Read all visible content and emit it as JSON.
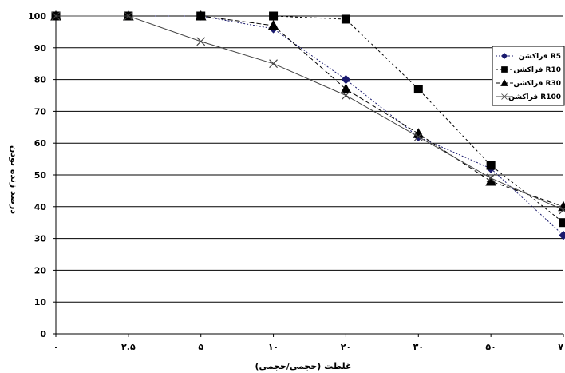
{
  "chart_data": {
    "type": "line",
    "categories": [
      "۰",
      "۲.۵",
      "۵",
      "۱۰",
      "۲۰",
      "۳۰",
      "۵۰",
      "۷"
    ],
    "ylim": [
      0,
      100
    ],
    "yticks": [
      0,
      10,
      20,
      30,
      40,
      50,
      60,
      70,
      80,
      90,
      100
    ],
    "xlabel": "غلظت (حجمی/حجمی)",
    "ylabel": "درصد زنده بودن",
    "grid": true,
    "legend_position": "right",
    "series": [
      {
        "name": "فراکشن R5",
        "marker": "diamond",
        "color": "#1a1a6e",
        "dash": "2,2",
        "values": [
          100,
          100,
          100,
          96,
          80,
          62,
          52,
          31
        ]
      },
      {
        "name": "فراکشن R10",
        "marker": "square",
        "color": "#000000",
        "dash": "3,3",
        "values": [
          100,
          100,
          100,
          100,
          99,
          77,
          53,
          35
        ]
      },
      {
        "name": "فراکشن R30",
        "marker": "triangle",
        "color": "#000000",
        "dash": "6,3",
        "values": [
          100,
          100,
          100,
          97,
          77,
          63,
          48,
          40
        ]
      },
      {
        "name": "فراکشن R100",
        "marker": "x",
        "color": "#444444",
        "dash": "",
        "values": [
          100,
          100,
          92,
          85,
          75,
          62,
          49,
          39
        ]
      }
    ]
  }
}
